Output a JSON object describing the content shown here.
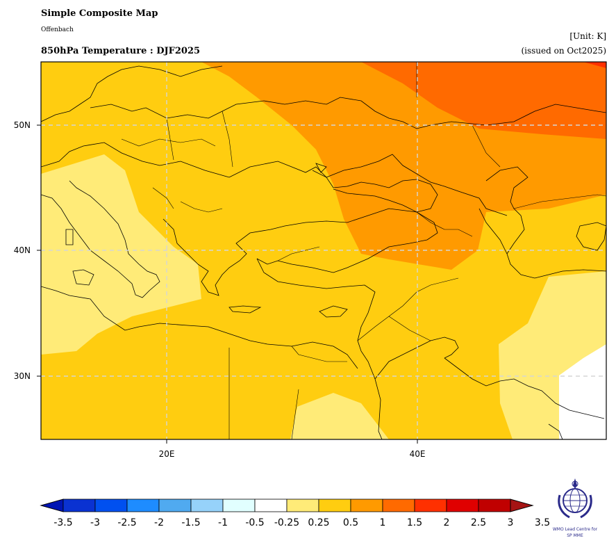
{
  "header": {
    "title": "Simple Composite Map",
    "subtitle": "Offenbach",
    "variable_title": "850hPa Temperature : DJF2025",
    "unit": "[Unit: K]",
    "issued": "(issued on Oct2025)"
  },
  "map": {
    "lon_range": [
      10,
      55
    ],
    "lat_range": [
      25,
      55
    ],
    "lat_ticks": [
      "50N",
      "40N",
      "30N"
    ],
    "lon_ticks": [
      "20E",
      "40E"
    ],
    "gridlines": true,
    "field": "850hPa temperature anomaly",
    "dominant_category": "0.5 to 1",
    "warmest_region": "northeast (Russia / Caspian)",
    "white_region": "southeast (Arabian Gulf area)"
  },
  "colorbar": {
    "labels": [
      "-3.5",
      "-3",
      "-2.5",
      "-2",
      "-1.5",
      "-1",
      "-0.5",
      "-0.25",
      "0.25",
      "0.5",
      "1",
      "1.5",
      "2",
      "2.5",
      "3",
      "3.5"
    ],
    "colors": [
      "#0014b4",
      "#0a32d2",
      "#0050f0",
      "#1e8cff",
      "#50aaf0",
      "#96d2fa",
      "#e1ffff",
      "#ffffff",
      "#ffeb78",
      "#ffcd10",
      "#ff9a00",
      "#ff6a00",
      "#ff3000",
      "#e00000",
      "#c00000",
      "#a51414"
    ]
  },
  "logo": {
    "line1": "WMO Lead Centre for",
    "line2": "SP MME"
  }
}
